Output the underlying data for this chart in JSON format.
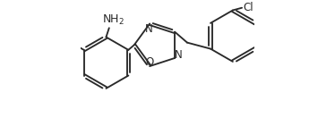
{
  "bg_color": "#ffffff",
  "line_color": "#2a2a2a",
  "line_width": 1.35,
  "font_size": 8.5,
  "fig_width": 3.74,
  "fig_height": 1.32,
  "dpi": 100,
  "xlim": [
    0.0,
    1.05
  ],
  "ylim": [
    0.05,
    0.75
  ]
}
